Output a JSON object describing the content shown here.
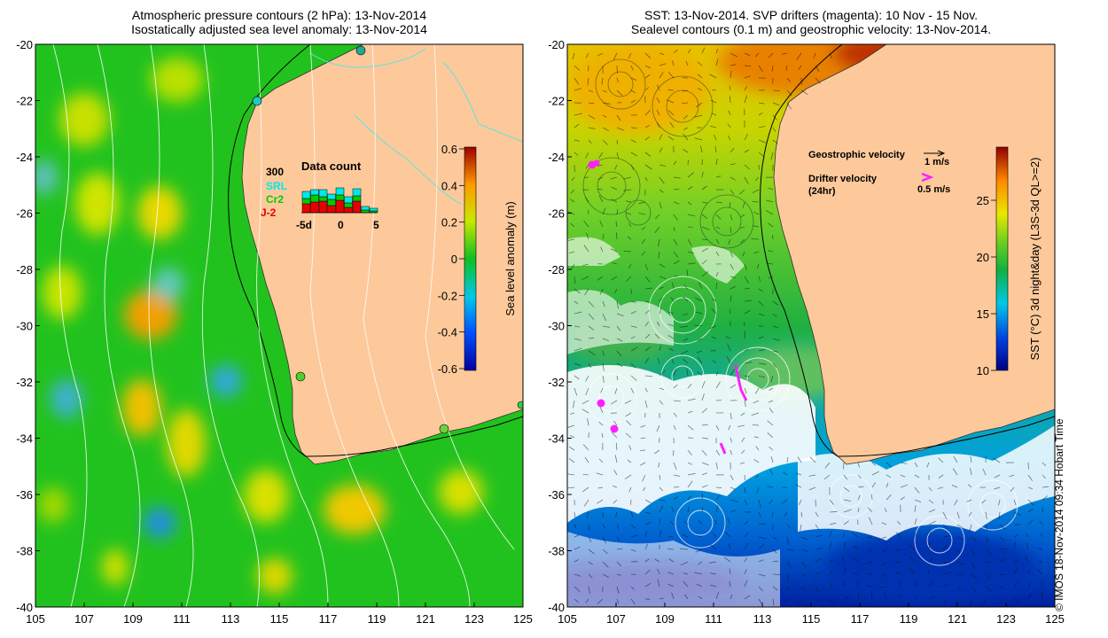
{
  "left_panel": {
    "title_line1": "Atmospheric pressure contours (2 hPa): 13-Nov-2014",
    "title_line2": "Isostatically adjusted sea level anomaly: 13-Nov-2014",
    "colorbar": {
      "label": "Sea level anomaly (m)",
      "ticks": [
        "0.6",
        "0.4",
        "0.2",
        "0",
        "-0.2",
        "-0.4",
        "-0.6"
      ]
    },
    "inset": {
      "title": "Data count",
      "max_label": "300",
      "legend": [
        {
          "name": "SRL",
          "color": "#00e8e8"
        },
        {
          "name": "Cr2",
          "color": "#00cc00"
        },
        {
          "name": "J-2",
          "color": "#e80000"
        }
      ],
      "x_ticks": [
        "-5d",
        "0",
        "5"
      ]
    }
  },
  "right_panel": {
    "title_line1": "SST: 13-Nov-2014. SVP drifters (magenta): 10 Nov - 15 Nov.",
    "title_line2": "Sealevel contours (0.1 m) and geostrophic velocity: 13-Nov-2014.",
    "legend": {
      "geo_label": "Geostrophic velocity",
      "geo_speed": "1 m/s",
      "drifter_label_1": "Drifter velocity",
      "drifter_label_2": "(24hr)",
      "drifter_speed": "0.5 m/s"
    },
    "colorbar": {
      "label": "SST (°C) 3d night&day (L3S-3d QL>=2)",
      "ticks": [
        "25",
        "20",
        "15",
        "10"
      ]
    }
  },
  "axes": {
    "y_ticks": [
      "-20",
      "-22",
      "-24",
      "-26",
      "-28",
      "-30",
      "-32",
      "-34",
      "-36",
      "-38",
      "-40"
    ],
    "x_ticks": [
      "105",
      "107",
      "109",
      "111",
      "113",
      "115",
      "117",
      "119",
      "121",
      "123",
      "125"
    ]
  },
  "footer": "© IMOS 18-Nov-2014 09:34 Hobart Time"
}
